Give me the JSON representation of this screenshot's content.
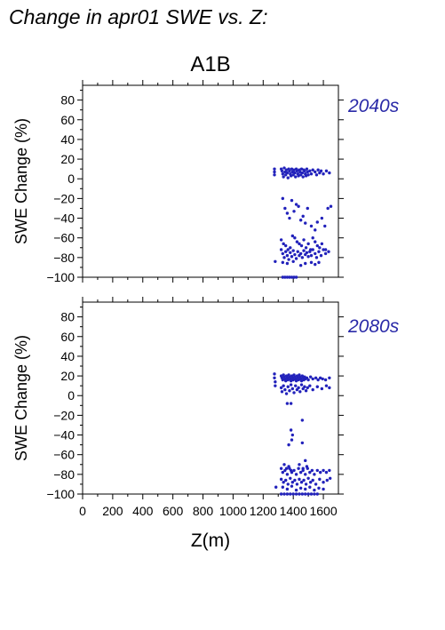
{
  "page_title": "Change in apr01 SWE vs. Z:",
  "scenario": "A1B",
  "point_color": "#2222bb",
  "period_color": "#2a2aa8",
  "chart_data": [
    {
      "type": "scatter",
      "period_label": "2040s",
      "ylabel": "SWE Change (%)",
      "xlabel": "",
      "xlim": [
        0,
        1700
      ],
      "ylim": [
        -100,
        95
      ],
      "xticks": [
        0,
        200,
        400,
        600,
        800,
        1000,
        1200,
        1400,
        1600
      ],
      "yticks": [
        -100,
        -80,
        -60,
        -40,
        -20,
        0,
        20,
        40,
        60,
        80
      ],
      "show_xtick_labels": false,
      "points": [
        [
          1275,
          10
        ],
        [
          1275,
          7
        ],
        [
          1275,
          4
        ],
        [
          1280,
          -84
        ],
        [
          1320,
          10
        ],
        [
          1325,
          8
        ],
        [
          1330,
          5
        ],
        [
          1335,
          2
        ],
        [
          1340,
          11
        ],
        [
          1345,
          7
        ],
        [
          1350,
          4
        ],
        [
          1355,
          9
        ],
        [
          1360,
          6
        ],
        [
          1365,
          1
        ],
        [
          1370,
          10
        ],
        [
          1375,
          8
        ],
        [
          1380,
          5
        ],
        [
          1385,
          3
        ],
        [
          1390,
          10
        ],
        [
          1395,
          7
        ],
        [
          1400,
          4
        ],
        [
          1405,
          9
        ],
        [
          1410,
          6
        ],
        [
          1415,
          2
        ],
        [
          1420,
          10
        ],
        [
          1425,
          8
        ],
        [
          1430,
          5
        ],
        [
          1435,
          3
        ],
        [
          1440,
          9
        ],
        [
          1445,
          7
        ],
        [
          1450,
          4
        ],
        [
          1455,
          10
        ],
        [
          1460,
          6
        ],
        [
          1465,
          2
        ],
        [
          1470,
          9
        ],
        [
          1475,
          8
        ],
        [
          1480,
          5
        ],
        [
          1485,
          3
        ],
        [
          1490,
          10
        ],
        [
          1495,
          7
        ],
        [
          1500,
          4
        ],
        [
          1510,
          8
        ],
        [
          1520,
          5
        ],
        [
          1530,
          9
        ],
        [
          1545,
          7
        ],
        [
          1555,
          4
        ],
        [
          1565,
          9
        ],
        [
          1575,
          6
        ],
        [
          1585,
          8
        ],
        [
          1600,
          5
        ],
        [
          1620,
          8
        ],
        [
          1640,
          6
        ],
        [
          1330,
          -20
        ],
        [
          1345,
          -30
        ],
        [
          1360,
          -35
        ],
        [
          1375,
          -40
        ],
        [
          1390,
          -22
        ],
        [
          1405,
          -33
        ],
        [
          1420,
          -26
        ],
        [
          1435,
          -28
        ],
        [
          1450,
          -42
        ],
        [
          1465,
          -38
        ],
        [
          1480,
          -45
        ],
        [
          1495,
          -30
        ],
        [
          1520,
          -48
        ],
        [
          1545,
          -52
        ],
        [
          1560,
          -44
        ],
        [
          1590,
          -40
        ],
        [
          1610,
          -48
        ],
        [
          1630,
          -30
        ],
        [
          1650,
          -28
        ],
        [
          1320,
          -62
        ],
        [
          1335,
          -66
        ],
        [
          1350,
          -68
        ],
        [
          1365,
          -72
        ],
        [
          1380,
          -70
        ],
        [
          1395,
          -58
        ],
        [
          1410,
          -60
        ],
        [
          1425,
          -64
        ],
        [
          1440,
          -66
        ],
        [
          1455,
          -68
        ],
        [
          1470,
          -62
        ],
        [
          1485,
          -70
        ],
        [
          1500,
          -66
        ],
        [
          1515,
          -72
        ],
        [
          1530,
          -60
        ],
        [
          1545,
          -64
        ],
        [
          1560,
          -68
        ],
        [
          1575,
          -70
        ],
        [
          1590,
          -66
        ],
        [
          1615,
          -72
        ],
        [
          1320,
          -72
        ],
        [
          1330,
          -76
        ],
        [
          1340,
          -80
        ],
        [
          1350,
          -74
        ],
        [
          1360,
          -78
        ],
        [
          1370,
          -82
        ],
        [
          1380,
          -75
        ],
        [
          1390,
          -79
        ],
        [
          1400,
          -73
        ],
        [
          1410,
          -77
        ],
        [
          1420,
          -81
        ],
        [
          1430,
          -74
        ],
        [
          1440,
          -78
        ],
        [
          1450,
          -76
        ],
        [
          1460,
          -80
        ],
        [
          1470,
          -73
        ],
        [
          1480,
          -77
        ],
        [
          1490,
          -75
        ],
        [
          1500,
          -79
        ],
        [
          1510,
          -74
        ],
        [
          1520,
          -78
        ],
        [
          1530,
          -72
        ],
        [
          1545,
          -76
        ],
        [
          1555,
          -80
        ],
        [
          1570,
          -74
        ],
        [
          1585,
          -78
        ],
        [
          1600,
          -72
        ],
        [
          1615,
          -76
        ],
        [
          1635,
          -74
        ],
        [
          1330,
          -85
        ],
        [
          1360,
          -86
        ],
        [
          1400,
          -84
        ],
        [
          1450,
          -88
        ],
        [
          1480,
          -86
        ],
        [
          1520,
          -85
        ],
        [
          1545,
          -87
        ],
        [
          1570,
          -85
        ],
        [
          1330,
          -100
        ],
        [
          1345,
          -100
        ],
        [
          1360,
          -100
        ],
        [
          1375,
          -100
        ],
        [
          1390,
          -100
        ],
        [
          1405,
          -100
        ],
        [
          1420,
          -100
        ]
      ]
    },
    {
      "type": "scatter",
      "period_label": "2080s",
      "ylabel": "SWE Change (%)",
      "xlabel": "Z(m)",
      "xlim": [
        0,
        1700
      ],
      "ylim": [
        -100,
        95
      ],
      "xticks": [
        0,
        200,
        400,
        600,
        800,
        1000,
        1200,
        1400,
        1600
      ],
      "xtick_labels": [
        "0",
        "200",
        "400",
        "600",
        "800",
        "1000",
        "1200",
        "1400",
        "1600"
      ],
      "yticks": [
        -100,
        -80,
        -60,
        -40,
        -20,
        0,
        20,
        40,
        60,
        80
      ],
      "show_xtick_labels": true,
      "points": [
        [
          1275,
          22
        ],
        [
          1275,
          18
        ],
        [
          1280,
          14
        ],
        [
          1280,
          10
        ],
        [
          1285,
          -93
        ],
        [
          1320,
          20
        ],
        [
          1325,
          18
        ],
        [
          1330,
          16
        ],
        [
          1335,
          21
        ],
        [
          1340,
          19
        ],
        [
          1345,
          17
        ],
        [
          1350,
          15
        ],
        [
          1355,
          20
        ],
        [
          1360,
          18
        ],
        [
          1365,
          16
        ],
        [
          1370,
          21
        ],
        [
          1375,
          19
        ],
        [
          1380,
          17
        ],
        [
          1385,
          15
        ],
        [
          1390,
          20
        ],
        [
          1395,
          18
        ],
        [
          1400,
          16
        ],
        [
          1405,
          21
        ],
        [
          1410,
          19
        ],
        [
          1415,
          17
        ],
        [
          1420,
          15
        ],
        [
          1425,
          20
        ],
        [
          1430,
          18
        ],
        [
          1435,
          16
        ],
        [
          1440,
          21
        ],
        [
          1445,
          19
        ],
        [
          1450,
          17
        ],
        [
          1455,
          15
        ],
        [
          1460,
          20
        ],
        [
          1465,
          18
        ],
        [
          1470,
          16
        ],
        [
          1475,
          19
        ],
        [
          1480,
          17
        ],
        [
          1490,
          18
        ],
        [
          1500,
          16
        ],
        [
          1515,
          19
        ],
        [
          1530,
          17
        ],
        [
          1550,
          18
        ],
        [
          1565,
          16
        ],
        [
          1580,
          18
        ],
        [
          1595,
          17
        ],
        [
          1615,
          16
        ],
        [
          1640,
          18
        ],
        [
          1320,
          8
        ],
        [
          1325,
          4
        ],
        [
          1335,
          10
        ],
        [
          1345,
          6
        ],
        [
          1355,
          2
        ],
        [
          1365,
          9
        ],
        [
          1375,
          5
        ],
        [
          1385,
          11
        ],
        [
          1395,
          7
        ],
        [
          1405,
          3
        ],
        [
          1415,
          10
        ],
        [
          1425,
          6
        ],
        [
          1435,
          8
        ],
        [
          1445,
          4
        ],
        [
          1455,
          11
        ],
        [
          1465,
          7
        ],
        [
          1475,
          9
        ],
        [
          1485,
          5
        ],
        [
          1495,
          8
        ],
        [
          1510,
          10
        ],
        [
          1530,
          6
        ],
        [
          1560,
          9
        ],
        [
          1590,
          7
        ],
        [
          1620,
          10
        ],
        [
          1640,
          8
        ],
        [
          1360,
          -8
        ],
        [
          1385,
          -8
        ],
        [
          1460,
          -25
        ],
        [
          1385,
          -35
        ],
        [
          1395,
          -40
        ],
        [
          1390,
          -45
        ],
        [
          1370,
          -50
        ],
        [
          1460,
          -48
        ],
        [
          1340,
          -70
        ],
        [
          1355,
          -74
        ],
        [
          1370,
          -72
        ],
        [
          1385,
          -76
        ],
        [
          1440,
          -70
        ],
        [
          1465,
          -74
        ],
        [
          1480,
          -66
        ],
        [
          1490,
          -72
        ],
        [
          1320,
          -74
        ],
        [
          1330,
          -78
        ],
        [
          1345,
          -76
        ],
        [
          1360,
          -80
        ],
        [
          1375,
          -74
        ],
        [
          1390,
          -78
        ],
        [
          1405,
          -76
        ],
        [
          1420,
          -80
        ],
        [
          1435,
          -74
        ],
        [
          1450,
          -78
        ],
        [
          1465,
          -76
        ],
        [
          1480,
          -80
        ],
        [
          1495,
          -74
        ],
        [
          1510,
          -78
        ],
        [
          1525,
          -76
        ],
        [
          1540,
          -80
        ],
        [
          1560,
          -76
        ],
        [
          1580,
          -78
        ],
        [
          1600,
          -76
        ],
        [
          1620,
          -78
        ],
        [
          1640,
          -76
        ],
        [
          1320,
          -85
        ],
        [
          1335,
          -88
        ],
        [
          1350,
          -86
        ],
        [
          1365,
          -90
        ],
        [
          1380,
          -84
        ],
        [
          1395,
          -88
        ],
        [
          1410,
          -86
        ],
        [
          1425,
          -90
        ],
        [
          1440,
          -85
        ],
        [
          1455,
          -88
        ],
        [
          1470,
          -86
        ],
        [
          1485,
          -90
        ],
        [
          1500,
          -84
        ],
        [
          1515,
          -88
        ],
        [
          1530,
          -86
        ],
        [
          1550,
          -90
        ],
        [
          1575,
          -85
        ],
        [
          1600,
          -88
        ],
        [
          1625,
          -86
        ],
        [
          1645,
          -84
        ],
        [
          1330,
          -93
        ],
        [
          1360,
          -95
        ],
        [
          1390,
          -92
        ],
        [
          1420,
          -96
        ],
        [
          1450,
          -94
        ],
        [
          1480,
          -95
        ],
        [
          1510,
          -93
        ],
        [
          1540,
          -96
        ],
        [
          1570,
          -94
        ],
        [
          1600,
          -95
        ],
        [
          1320,
          -100
        ],
        [
          1340,
          -100
        ],
        [
          1360,
          -100
        ],
        [
          1380,
          -100
        ],
        [
          1400,
          -100
        ],
        [
          1420,
          -100
        ],
        [
          1440,
          -100
        ],
        [
          1460,
          -100
        ],
        [
          1480,
          -100
        ],
        [
          1500,
          -100
        ],
        [
          1520,
          -100
        ],
        [
          1540,
          -100
        ],
        [
          1560,
          -100
        ]
      ]
    }
  ]
}
